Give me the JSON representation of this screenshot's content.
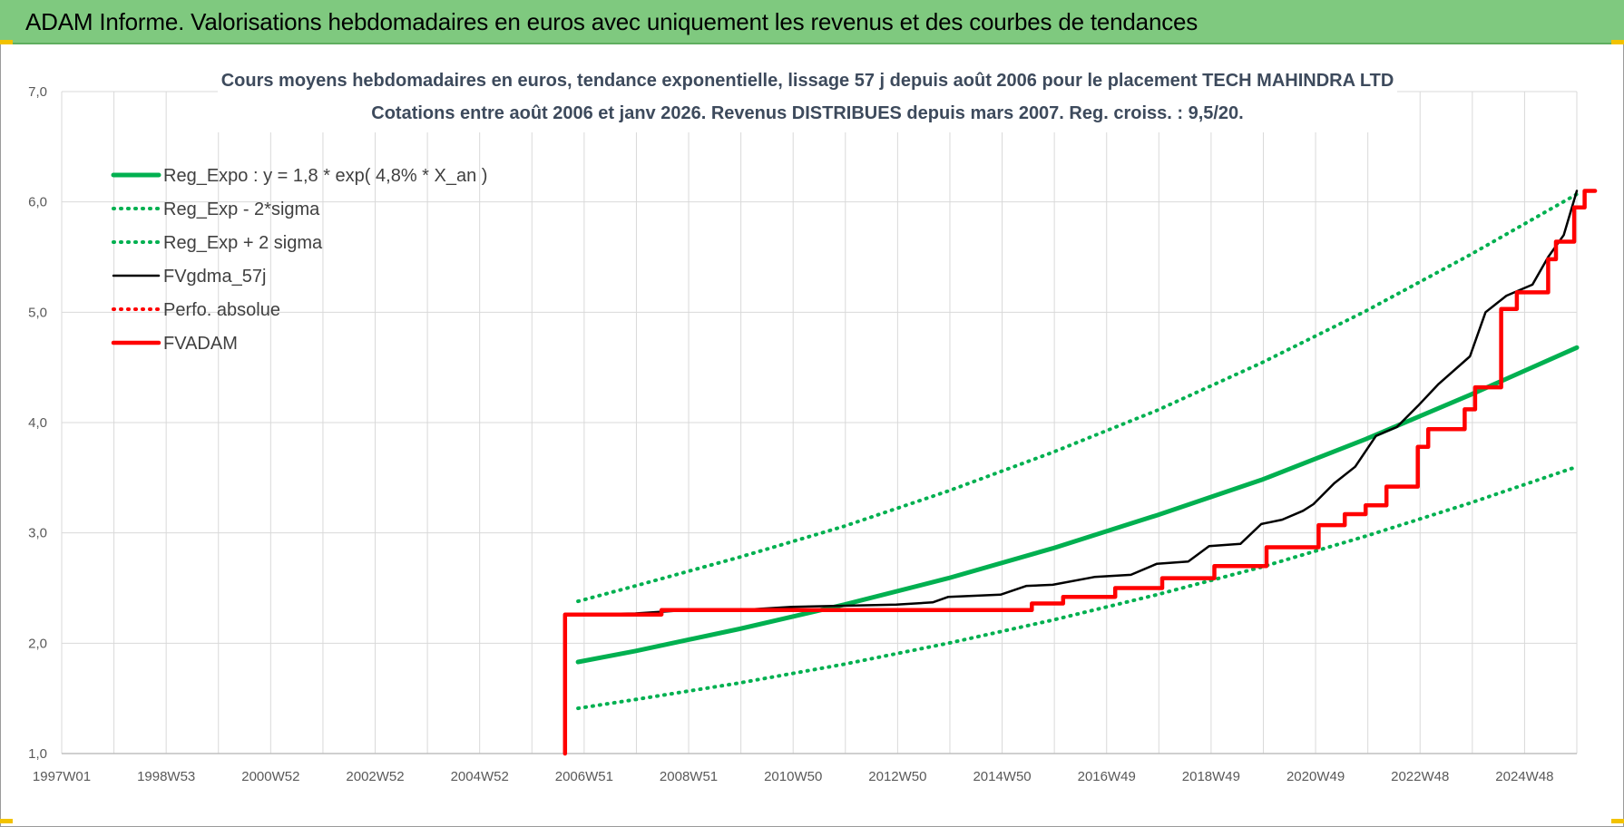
{
  "banner": {
    "title": "ADAM Informe. Valorisations hebdomadaires en euros avec uniquement les revenus et des courbes de tendances"
  },
  "colors": {
    "banner": "#7fc97f",
    "reg": "#00b050",
    "fv": "#000000",
    "adam": "#ff0000",
    "grid": "#d9d9d9"
  },
  "chart_data": {
    "type": "line",
    "title": "Cours moyens hebdomadaires en euros, tendance exponentielle, lissage 57 j depuis août 2006 pour le placement TECH MAHINDRA LTD",
    "subtitle": "Cotations entre août 2006 et janv 2026. Revenus DISTRIBUES depuis mars 2007. Reg. croiss. : 9,5/20.",
    "x_tick_labels": [
      "1997W01",
      "1998W53",
      "2000W52",
      "2002W52",
      "2004W52",
      "2006W51",
      "2008W51",
      "2010W50",
      "2012W50",
      "2014W50",
      "2016W49",
      "2018W49",
      "2020W49",
      "2022W48",
      "2024W48"
    ],
    "y_tick_labels": [
      "1,0",
      "2,0",
      "3,0",
      "4,0",
      "5,0",
      "6,0",
      "7,0"
    ],
    "ylim": [
      1.0,
      7.0
    ],
    "xlim": [
      1997.0,
      2026.05
    ],
    "grid": true,
    "legend_position": "top-left",
    "series": [
      {
        "name": "Reg_Expo : y = 1,8 * exp( 4,8% *  X_an )",
        "style": "solid-thick",
        "color": "#00b050",
        "points": [
          [
            2006.9,
            1.83
          ],
          [
            2008,
            1.93
          ],
          [
            2010,
            2.13
          ],
          [
            2012,
            2.35
          ],
          [
            2014,
            2.59
          ],
          [
            2016,
            2.86
          ],
          [
            2018,
            3.16
          ],
          [
            2020,
            3.48
          ],
          [
            2022,
            3.85
          ],
          [
            2024,
            4.25
          ],
          [
            2026.05,
            4.68
          ]
        ]
      },
      {
        "name": "Reg_Exp - 2*sigma",
        "style": "dotted",
        "color": "#00b050",
        "points": [
          [
            2006.9,
            1.41
          ],
          [
            2008,
            1.49
          ],
          [
            2010,
            1.64
          ],
          [
            2012,
            1.81
          ],
          [
            2014,
            2.0
          ],
          [
            2016,
            2.21
          ],
          [
            2018,
            2.44
          ],
          [
            2020,
            2.69
          ],
          [
            2022,
            2.97
          ],
          [
            2024,
            3.27
          ],
          [
            2026.05,
            3.6
          ]
        ]
      },
      {
        "name": "Reg_Exp + 2 sigma",
        "style": "dotted",
        "color": "#00b050",
        "points": [
          [
            2006.9,
            2.38
          ],
          [
            2008,
            2.52
          ],
          [
            2010,
            2.78
          ],
          [
            2012,
            3.06
          ],
          [
            2014,
            3.38
          ],
          [
            2016,
            3.73
          ],
          [
            2018,
            4.11
          ],
          [
            2020,
            4.54
          ],
          [
            2022,
            5.01
          ],
          [
            2024,
            5.52
          ],
          [
            2026.05,
            6.07
          ]
        ]
      },
      {
        "name": "FVgdma_57j",
        "style": "solid",
        "color": "#000000",
        "points": [
          [
            2006.7,
            2.26
          ],
          [
            2008,
            2.27
          ],
          [
            2009,
            2.3
          ],
          [
            2010,
            2.3
          ],
          [
            2011,
            2.33
          ],
          [
            2012,
            2.34
          ],
          [
            2013,
            2.35
          ],
          [
            2013.7,
            2.37
          ],
          [
            2014,
            2.42
          ],
          [
            2015,
            2.44
          ],
          [
            2015.5,
            2.52
          ],
          [
            2016,
            2.53
          ],
          [
            2016.8,
            2.6
          ],
          [
            2017.5,
            2.62
          ],
          [
            2018,
            2.72
          ],
          [
            2018.6,
            2.74
          ],
          [
            2019,
            2.88
          ],
          [
            2019.6,
            2.9
          ],
          [
            2020,
            3.08
          ],
          [
            2020.4,
            3.12
          ],
          [
            2020.8,
            3.2
          ],
          [
            2021,
            3.26
          ],
          [
            2021.4,
            3.45
          ],
          [
            2021.8,
            3.6
          ],
          [
            2022.2,
            3.88
          ],
          [
            2022.6,
            3.96
          ],
          [
            2023,
            4.15
          ],
          [
            2023.4,
            4.35
          ],
          [
            2024,
            4.6
          ],
          [
            2024.3,
            5.0
          ],
          [
            2024.7,
            5.15
          ],
          [
            2025.2,
            5.25
          ],
          [
            2025.5,
            5.5
          ],
          [
            2025.8,
            5.7
          ],
          [
            2026.05,
            6.1
          ]
        ]
      },
      {
        "name": "Perfo. absolue",
        "style": "dotted",
        "color": "#ff0000",
        "points": []
      },
      {
        "name": "FVADAM",
        "style": "step-thick",
        "color": "#ff0000",
        "points": [
          [
            2006.65,
            1.0
          ],
          [
            2006.65,
            2.26
          ],
          [
            2008.5,
            2.26
          ],
          [
            2008.5,
            2.3
          ],
          [
            2015.6,
            2.3
          ],
          [
            2015.6,
            2.36
          ],
          [
            2016.2,
            2.36
          ],
          [
            2016.2,
            2.42
          ],
          [
            2017.2,
            2.42
          ],
          [
            2017.2,
            2.5
          ],
          [
            2018.1,
            2.5
          ],
          [
            2018.1,
            2.59
          ],
          [
            2019.1,
            2.59
          ],
          [
            2019.1,
            2.7
          ],
          [
            2020.1,
            2.7
          ],
          [
            2020.1,
            2.87
          ],
          [
            2021.1,
            2.87
          ],
          [
            2021.1,
            3.07
          ],
          [
            2021.6,
            3.07
          ],
          [
            2021.6,
            3.17
          ],
          [
            2022.0,
            3.17
          ],
          [
            2022.0,
            3.25
          ],
          [
            2022.4,
            3.25
          ],
          [
            2022.4,
            3.42
          ],
          [
            2023.0,
            3.42
          ],
          [
            2023.0,
            3.78
          ],
          [
            2023.2,
            3.78
          ],
          [
            2023.2,
            3.94
          ],
          [
            2023.9,
            3.94
          ],
          [
            2023.9,
            4.12
          ],
          [
            2024.1,
            4.12
          ],
          [
            2024.1,
            4.32
          ],
          [
            2024.6,
            4.32
          ],
          [
            2024.6,
            5.03
          ],
          [
            2024.9,
            5.03
          ],
          [
            2024.9,
            5.18
          ],
          [
            2025.5,
            5.18
          ],
          [
            2025.5,
            5.48
          ],
          [
            2025.65,
            5.48
          ],
          [
            2025.65,
            5.64
          ],
          [
            2026.0,
            5.64
          ],
          [
            2026.0,
            5.95
          ],
          [
            2026.2,
            5.95
          ],
          [
            2026.2,
            6.1
          ],
          [
            2026.4,
            6.1
          ]
        ]
      }
    ]
  }
}
